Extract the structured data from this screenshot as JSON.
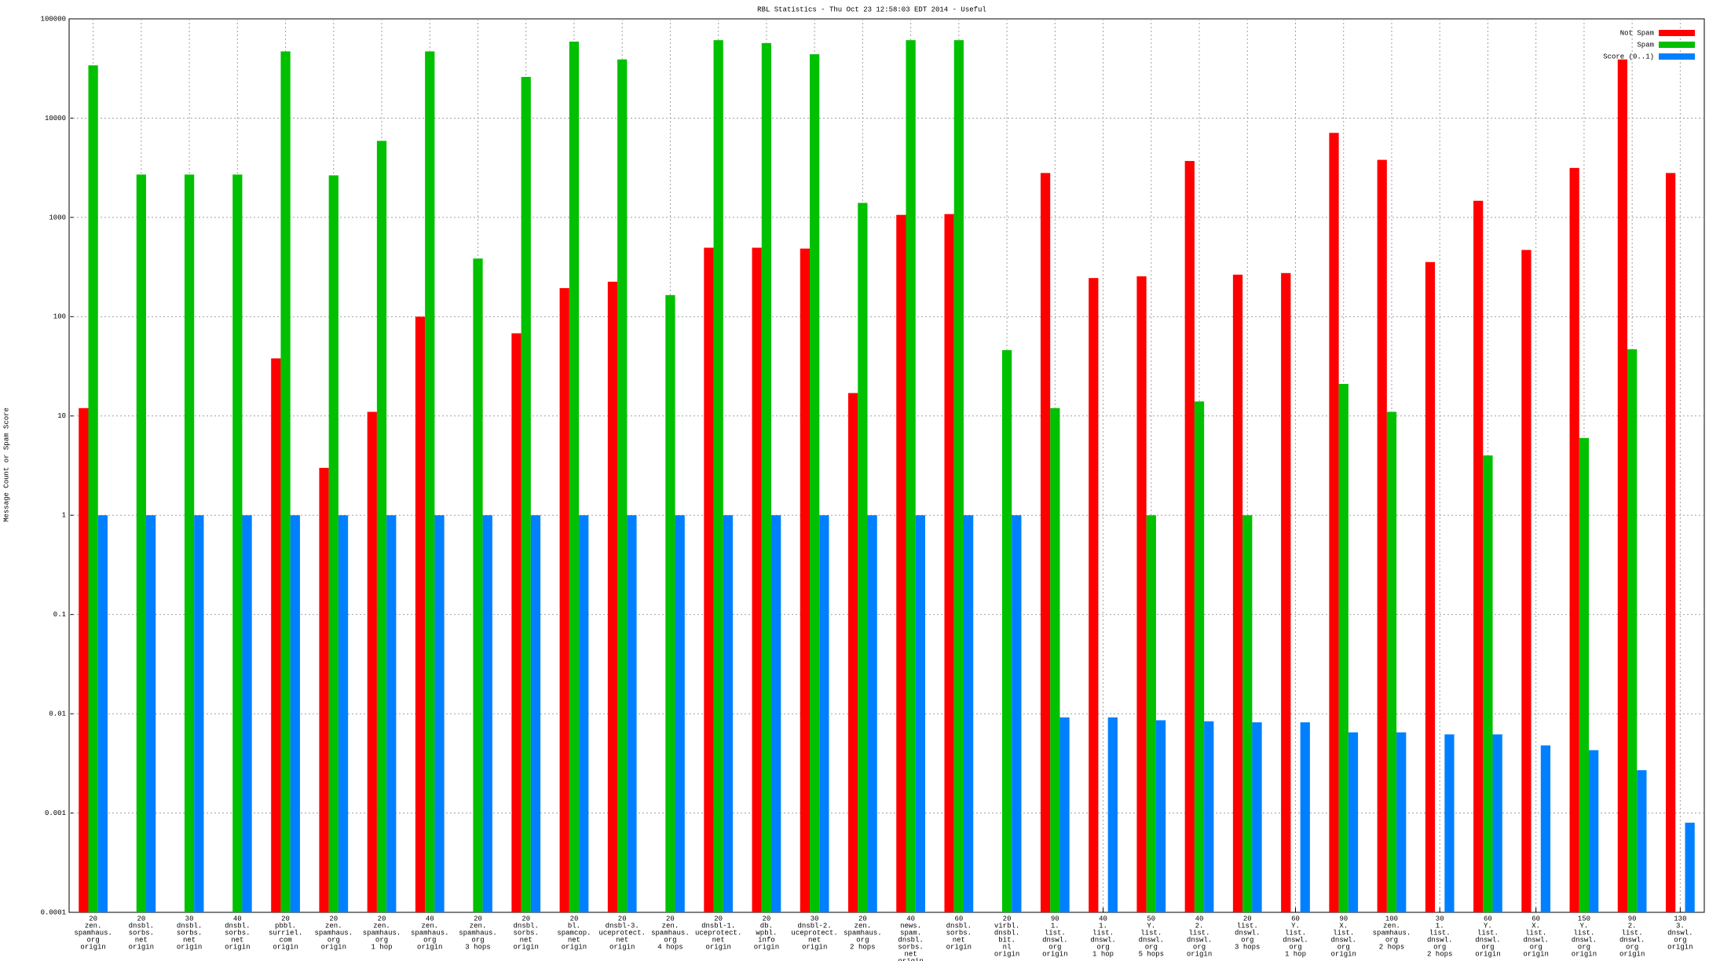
{
  "chart_data": {
    "type": "bar",
    "title": "RBL Statistics - Thu Oct 23 12:58:03 EDT 2014 - Useful",
    "y_label": "Message Count or Spam Score",
    "log_y": true,
    "grid": true,
    "legend": "top-right",
    "ylim": [
      0.0001,
      100000
    ],
    "yticks": [
      0.0001,
      0.001,
      0.01,
      0.1,
      1,
      10,
      100,
      1000,
      10000,
      100000
    ],
    "categories": [
      [
        "20",
        "zen.",
        "spamhaus.",
        "org",
        "origin"
      ],
      [
        "20",
        "dnsbl.",
        "sorbs.",
        "net",
        "origin"
      ],
      [
        "30",
        "dnsbl.",
        "sorbs.",
        "net",
        "origin"
      ],
      [
        "40",
        "dnsbl.",
        "sorbs.",
        "net",
        "origin"
      ],
      [
        "20",
        "pbbl.",
        "surriel.",
        "com",
        "origin"
      ],
      [
        "20",
        "zen.",
        "spamhaus.",
        "org",
        "origin"
      ],
      [
        "20",
        "zen.",
        "spamhaus.",
        "org",
        "1 hop"
      ],
      [
        "40",
        "zen.",
        "spamhaus.",
        "org",
        "origin"
      ],
      [
        "20",
        "zen.",
        "spamhaus.",
        "org",
        "3 hops"
      ],
      [
        "20",
        "dnsbl.",
        "sorbs.",
        "net",
        "origin"
      ],
      [
        "20",
        "bl.",
        "spamcop.",
        "net",
        "origin"
      ],
      [
        "20",
        "dnsbl-3.",
        "uceprotect.",
        "net",
        "origin"
      ],
      [
        "20",
        "zen.",
        "spamhaus.",
        "org",
        "4 hops"
      ],
      [
        "20",
        "dnsbl-1.",
        "uceprotect.",
        "net",
        "origin"
      ],
      [
        "20",
        "db.",
        "wpbl.",
        "info",
        "origin"
      ],
      [
        "30",
        "dnsbl-2.",
        "uceprotect.",
        "net",
        "origin"
      ],
      [
        "20",
        "zen.",
        "spamhaus.",
        "org",
        "2 hops"
      ],
      [
        "40",
        "news.",
        "spam.",
        "dnsbl.",
        "sorbs.",
        "net",
        "origin"
      ],
      [
        "60",
        "dnsbl.",
        "sorbs.",
        "net",
        "origin"
      ],
      [
        "20",
        "virbl.",
        "dnsbl.",
        "bit.",
        "nl",
        "origin"
      ],
      [
        "90",
        "1.",
        "list.",
        "dnswl.",
        "org",
        "origin"
      ],
      [
        "40",
        "1.",
        "list.",
        "dnswl.",
        "org",
        "1 hop"
      ],
      [
        "50",
        "Y.",
        "list.",
        "dnswl.",
        "org",
        "5 hops"
      ],
      [
        "40",
        "2.",
        "list.",
        "dnswl.",
        "org",
        "origin"
      ],
      [
        "20",
        "list.",
        "dnswl.",
        "org",
        "3 hops"
      ],
      [
        "60",
        "Y.",
        "list.",
        "dnswl.",
        "org",
        "1 hop"
      ],
      [
        "90",
        "X.",
        "list.",
        "dnswl.",
        "org",
        "origin"
      ],
      [
        "100",
        "zen.",
        "spamhaus.",
        "org",
        "2 hops"
      ],
      [
        "30",
        "1.",
        "list.",
        "dnswl.",
        "org",
        "2 hops"
      ],
      [
        "60",
        "Y.",
        "list.",
        "dnswl.",
        "org",
        "origin"
      ],
      [
        "60",
        "X.",
        "list.",
        "dnswl.",
        "org",
        "origin"
      ],
      [
        "150",
        "Y.",
        "list.",
        "dnswl.",
        "org",
        "origin"
      ],
      [
        "90",
        "2.",
        "list.",
        "dnswl.",
        "org",
        "origin"
      ],
      [
        "130",
        "3.",
        "dnswl.",
        "org",
        "origin"
      ]
    ],
    "series": [
      {
        "name": "Not Spam",
        "color": "#ff0000",
        "values": [
          12,
          null,
          null,
          null,
          38,
          3,
          11,
          100,
          null,
          68,
          194,
          225,
          null,
          495,
          495,
          485,
          17,
          1060,
          1080,
          null,
          2800,
          245,
          255,
          3700,
          265,
          275,
          7100,
          3800,
          355,
          1470,
          470,
          3150,
          39000,
          2800
        ]
      },
      {
        "name": "Spam",
        "color": "#00c000",
        "values": [
          34000,
          2700,
          2700,
          2700,
          47000,
          2650,
          5900,
          47000,
          385,
          26000,
          59000,
          39000,
          165,
          61000,
          57000,
          44000,
          1400,
          61000,
          61000,
          46,
          12,
          null,
          1,
          14,
          1,
          null,
          21,
          11,
          null,
          4,
          null,
          6,
          47,
          null
        ]
      },
      {
        "name": "Score (0..1)",
        "color": "#0080ff",
        "values": [
          1,
          1,
          1,
          1,
          1,
          1,
          1,
          1,
          1,
          1,
          1,
          1,
          1,
          1,
          1,
          1,
          1,
          1,
          1,
          1,
          0.0092,
          0.0092,
          0.0086,
          0.0084,
          0.0082,
          0.0082,
          0.0065,
          0.0065,
          0.0062,
          0.0062,
          0.0048,
          0.0043,
          0.0027,
          0.0008
        ]
      }
    ]
  }
}
